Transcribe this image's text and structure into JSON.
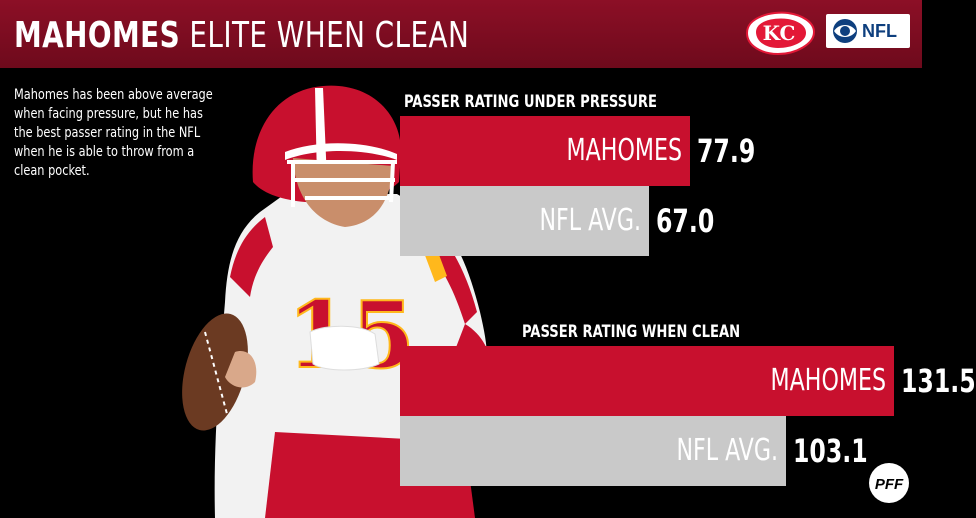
{
  "header": {
    "title_strong": "MAHOMES",
    "title_light": "ELITE WHEN CLEAN",
    "logos": [
      "kc-chiefs-logo",
      "cbs-eye-icon",
      "NFL"
    ],
    "nfl_text": "NFL"
  },
  "blurb": [
    "Mahomes has been above average",
    "when facing pressure, but he has",
    "the best passer rating in the NFL",
    "when he is able to throw from a",
    "clean pocket."
  ],
  "colors": {
    "header": "#7a0c20",
    "mahomes_bar": "#c8102e",
    "avg_bar": "#c9c9c9",
    "background": "#000000"
  },
  "chart_data": [
    {
      "type": "bar",
      "title": "PASSER RATING UNDER PRESSURE",
      "categories": [
        "MAHOMES",
        "NFL AVG."
      ],
      "values": [
        77.9,
        67.0
      ],
      "value_labels": [
        "77.9",
        "67.0"
      ]
    },
    {
      "type": "bar",
      "title": "PASSER RATING WHEN CLEAN",
      "categories": [
        "MAHOMES",
        "NFL AVG."
      ],
      "values": [
        131.5,
        103.1
      ],
      "value_labels": [
        "131.5",
        "103.1"
      ]
    }
  ],
  "footer_logo": "pff-logo",
  "jersey_number": "15"
}
